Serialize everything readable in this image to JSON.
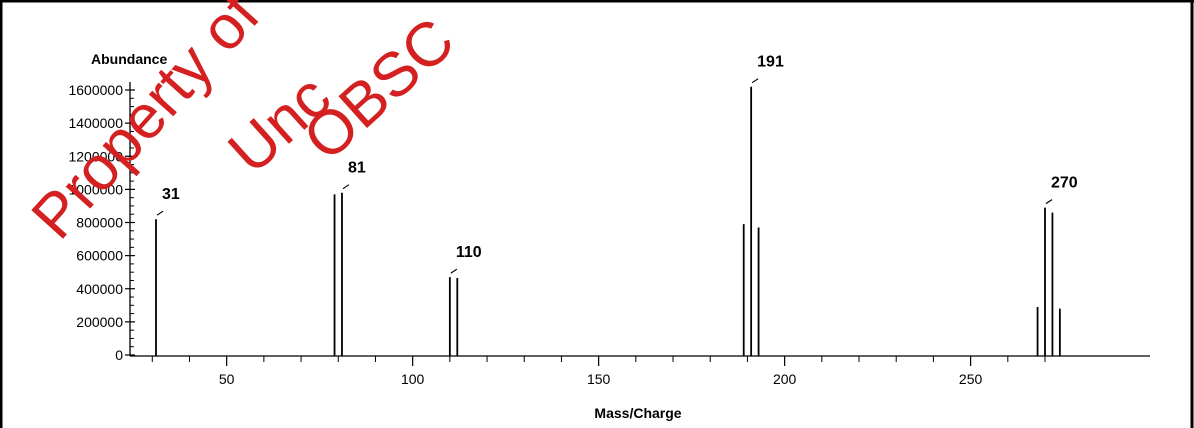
{
  "chart_data": {
    "type": "bar",
    "title": "",
    "xlabel": "Mass/Charge",
    "ylabel": "Abundance",
    "xlim": [
      29,
      276
    ],
    "ylim": [
      0,
      1600000
    ],
    "x_ticks": [
      50,
      100,
      150,
      200,
      250
    ],
    "y_ticks": [
      0,
      200000,
      400000,
      600000,
      800000,
      1000000,
      1200000,
      1400000,
      1600000
    ],
    "peaks": [
      {
        "mz": 31,
        "abundance": 820000
      },
      {
        "mz": 79,
        "abundance": 970000
      },
      {
        "mz": 81,
        "abundance": 980000
      },
      {
        "mz": 110,
        "abundance": 470000
      },
      {
        "mz": 112,
        "abundance": 465000
      },
      {
        "mz": 189,
        "abundance": 790000
      },
      {
        "mz": 191,
        "abundance": 1620000
      },
      {
        "mz": 193,
        "abundance": 770000
      },
      {
        "mz": 268,
        "abundance": 290000
      },
      {
        "mz": 270,
        "abundance": 890000
      },
      {
        "mz": 272,
        "abundance": 860000
      },
      {
        "mz": 274,
        "abundance": 280000
      }
    ],
    "peak_labels": [
      {
        "mz": 31,
        "text": "31"
      },
      {
        "mz": 81,
        "text": "81"
      },
      {
        "mz": 110,
        "text": "110"
      },
      {
        "mz": 191,
        "text": "191"
      },
      {
        "mz": 270,
        "text": "270"
      }
    ],
    "grid": false,
    "legend": "none"
  },
  "watermark": {
    "lines": [
      "Property of",
      "Unc",
      "OBSC"
    ],
    "color": "#d42020"
  }
}
